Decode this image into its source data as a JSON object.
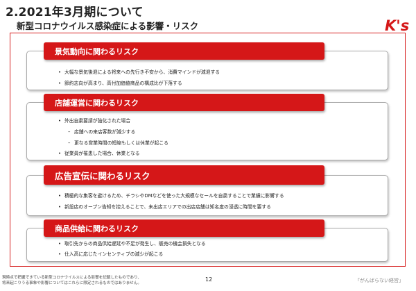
{
  "header": {
    "title": "2.2021年3月期について",
    "subtitle": "新型コロナウイルス感染症による影響・リスク",
    "logo_text": "K's"
  },
  "sections": [
    {
      "heading": "景気動向に関わるリスク",
      "items": [
        "大幅な景気後退による将来への先行き不安から、消費マインドが減退する",
        "節約志向が高まり、高付加価値商品の構成比が下落する"
      ]
    },
    {
      "heading": "店舗運営に関わるリスク",
      "items": [
        "外出自粛要請が強化された場合",
        "店舗への来店客数が減少する",
        "更なる営業時間の短縮もしくは休業が起こる",
        "従業員が罹患した場合、休業となる"
      ]
    },
    {
      "heading": "広告宣伝に関わるリスク",
      "items": [
        "積極的な集客を避けるため、チラシやDMなどを使った大規模なセールを自粛することで業績に影響する",
        "新設店のオープン告知を控えることで、未出店エリアでの出店店舗は知名度の浸透に時間を要する"
      ]
    },
    {
      "heading": "商品供給に関わるリスク",
      "items": [
        "取引先からの商品供給遅延や不足が発生し、販売の機会損失となる",
        "仕入高に応じたインセンティブの減少が起こる"
      ]
    }
  ],
  "footer": {
    "note_line1": "現時点で把握できている新型コロナウイルスによる影響を記載したものであり、",
    "note_line2": "将来起こりうる事象や影響についてはこれらに限定されるものではありません。",
    "page_number": "12",
    "slogan": "「がんばらない経営」"
  },
  "colors": {
    "accent_red": "#d51718",
    "frame_red": "#d61e1e",
    "text": "#222222"
  }
}
